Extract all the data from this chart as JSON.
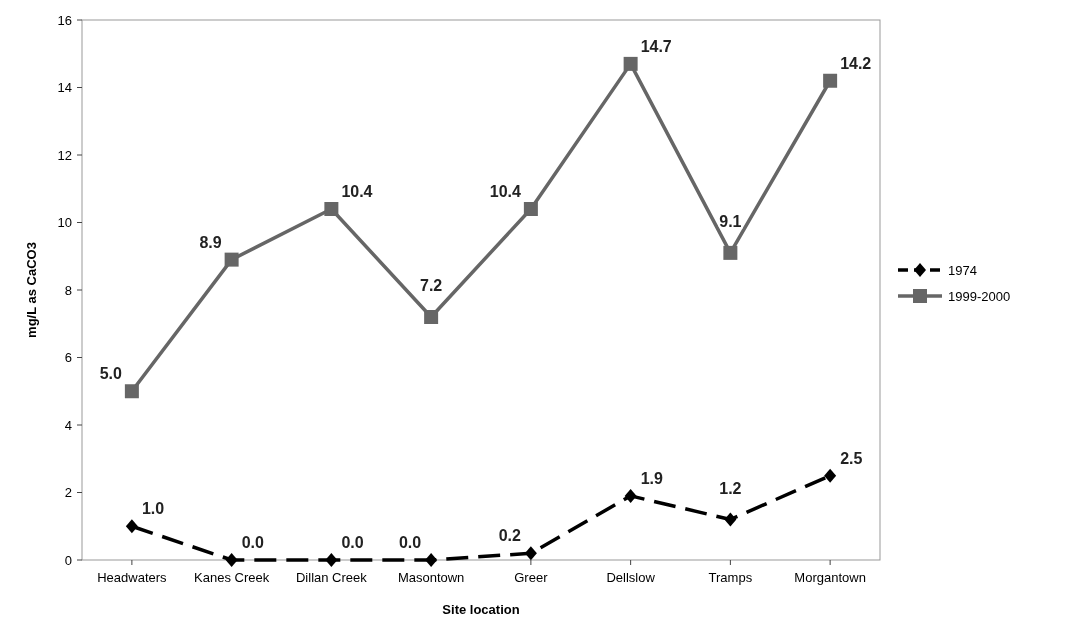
{
  "chart_data": {
    "type": "line",
    "xlabel": "Site location",
    "ylabel": "mg/L as CaCO3",
    "categories": [
      "Headwaters",
      "Kanes Creek",
      "Dillan Creek",
      "Masontown",
      "Greer",
      "Dellslow",
      "Tramps",
      "Morgantown"
    ],
    "series": [
      {
        "name": "1974",
        "color": "#000000",
        "marker": "diamond",
        "line_style": "dashed",
        "values": [
          1.0,
          0.0,
          0.0,
          0.0,
          0.2,
          1.9,
          1.2,
          2.5
        ],
        "value_labels": [
          "1.0",
          "0.0",
          "0.0",
          "0.0",
          "0.2",
          "1.9",
          "1.2",
          "2.5"
        ]
      },
      {
        "name": "1999-2000",
        "color": "#666666",
        "marker": "square",
        "line_style": "solid",
        "values": [
          5.0,
          8.9,
          10.4,
          7.2,
          10.4,
          14.7,
          9.1,
          14.2
        ],
        "value_labels": [
          "5.0",
          "8.9",
          "10.4",
          "7.2",
          "10.4",
          "14.7",
          "9.1",
          "14.2"
        ]
      }
    ],
    "ylim": [
      0,
      16
    ],
    "yticks": [
      0,
      2,
      4,
      6,
      8,
      10,
      12,
      14,
      16
    ],
    "grid": false,
    "legend": "right"
  }
}
